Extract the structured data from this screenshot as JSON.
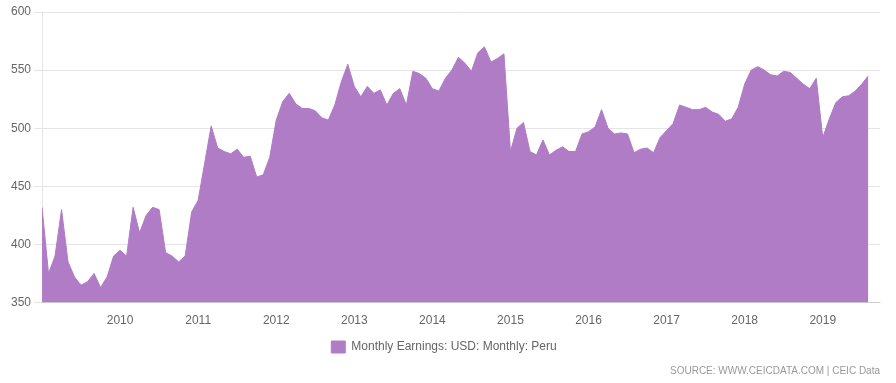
{
  "chart_data": {
    "type": "area",
    "annotations": [
      "SOURCE: WWW.CEICDATA.COM | CEIC Data"
    ],
    "x": [
      2009,
      2009.0833,
      2009.1667,
      2009.25,
      2009.3333,
      2009.4167,
      2009.5,
      2009.5833,
      2009.6667,
      2009.75,
      2009.8333,
      2009.9167,
      2010,
      2010.0833,
      2010.1667,
      2010.25,
      2010.3333,
      2010.4167,
      2010.5,
      2010.5833,
      2010.6667,
      2010.75,
      2010.8333,
      2010.9167,
      2011,
      2011.0833,
      2011.1667,
      2011.25,
      2011.3333,
      2011.4167,
      2011.5,
      2011.5833,
      2011.6667,
      2011.75,
      2011.8333,
      2011.9167,
      2012,
      2012.0833,
      2012.1667,
      2012.25,
      2012.3333,
      2012.4167,
      2012.5,
      2012.5833,
      2012.6667,
      2012.75,
      2012.8333,
      2012.9167,
      2013,
      2013.0833,
      2013.1667,
      2013.25,
      2013.3333,
      2013.4167,
      2013.5,
      2013.5833,
      2013.6667,
      2013.75,
      2013.8333,
      2013.9167,
      2014,
      2014.0833,
      2014.1667,
      2014.25,
      2014.3333,
      2014.4167,
      2014.5,
      2014.5833,
      2014.6667,
      2014.75,
      2014.8333,
      2014.9167,
      2015,
      2015.0833,
      2015.1667,
      2015.25,
      2015.3333,
      2015.4167,
      2015.5,
      2015.5833,
      2015.6667,
      2015.75,
      2015.8333,
      2015.9167,
      2016,
      2016.0833,
      2016.1667,
      2016.25,
      2016.3333,
      2016.4167,
      2016.5,
      2016.5833,
      2016.6667,
      2016.75,
      2016.8333,
      2016.9167,
      2017,
      2017.0833,
      2017.1667,
      2017.25,
      2017.3333,
      2017.4167,
      2017.5,
      2017.5833,
      2017.6667,
      2017.75,
      2017.8333,
      2017.9167,
      2018,
      2018.0833,
      2018.1667,
      2018.25,
      2018.3333,
      2018.4167,
      2018.5,
      2018.5833,
      2018.6667,
      2018.75,
      2018.8333,
      2018.9167,
      2019,
      2019.0833,
      2019.1667,
      2019.25,
      2019.3333,
      2019.4167,
      2019.5,
      2019.5833
    ],
    "series": [
      {
        "name": "Monthly Earnings: USD: Monthly: Peru",
        "color": "#B07CC6",
        "values": [
          432,
          375,
          390,
          430,
          385,
          372,
          365,
          368,
          375,
          363,
          372,
          390,
          395,
          390,
          432,
          410,
          425,
          432,
          430,
          393,
          390,
          385,
          390,
          428,
          438,
          470,
          502,
          483,
          480,
          478,
          482,
          475,
          476,
          458,
          460,
          475,
          507,
          523,
          530,
          521,
          517,
          517,
          515,
          509,
          507,
          520,
          540,
          555,
          536,
          527,
          536,
          530,
          533,
          520,
          530,
          534,
          520,
          549,
          547,
          543,
          534,
          532,
          543,
          550,
          561,
          556,
          549,
          565,
          570,
          557,
          560,
          564,
          480,
          500,
          505,
          480,
          477,
          490,
          477,
          481,
          484,
          480,
          480,
          495,
          497,
          501,
          516,
          500,
          495,
          496,
          495,
          479,
          482,
          483,
          479,
          492,
          498,
          504,
          520,
          518,
          516,
          516,
          518,
          514,
          512,
          506,
          508,
          518,
          538,
          550,
          553,
          550,
          546,
          545,
          549,
          548,
          543,
          538,
          534,
          543,
          492,
          508,
          522,
          527,
          528,
          532,
          538,
          545
        ]
      }
    ],
    "xlim": [
      2009,
      2019.7333
    ],
    "xticks": [
      2010,
      2011,
      2012,
      2013,
      2014,
      2015,
      2016,
      2017,
      2018,
      2019
    ],
    "ylim": [
      350,
      600
    ],
    "yticks": [
      350,
      400,
      450,
      500,
      550,
      600
    ],
    "grid": "y",
    "legend": "bottom"
  }
}
